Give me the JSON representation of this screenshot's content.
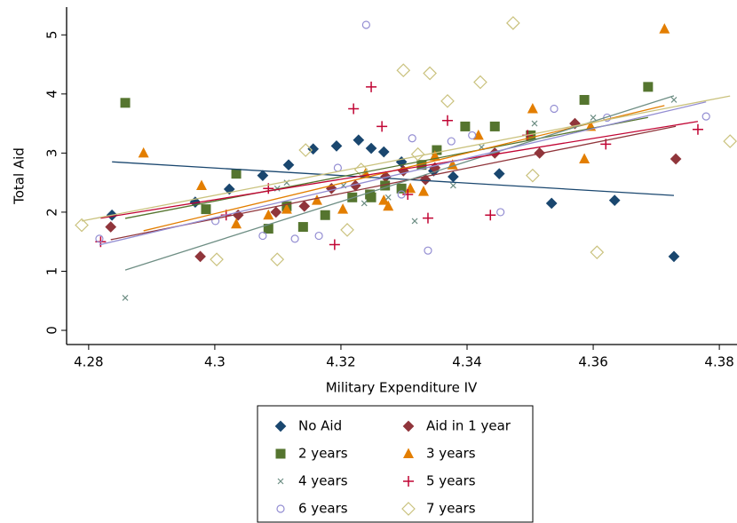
{
  "chart_data": {
    "type": "scatter",
    "x_label": "Military Expenditure IV",
    "y_label": "Total Aid",
    "xlim": [
      4.2765,
      4.3828
    ],
    "ylim": [
      -0.24,
      5.47
    ],
    "xticks": [
      4.28,
      {
        "value": 4.3,
        "label": "4.3"
      },
      4.32,
      4.34,
      4.36,
      4.38
    ],
    "yticks": [
      0,
      1,
      2,
      3,
      4,
      5
    ],
    "fit_lines": true,
    "series": [
      {
        "name": "No Aid",
        "color": "#1a476f",
        "marker": "diamond",
        "x": [
          4.2837,
          4.2969,
          4.3023,
          4.3076,
          4.3117,
          4.3156,
          4.3193,
          4.3228,
          4.3248,
          4.3268,
          4.3296,
          4.3378,
          4.3451,
          4.3534,
          4.3634,
          4.3728,
          4.3347
        ],
        "values": [
          1.95,
          2.17,
          2.39,
          2.62,
          2.8,
          3.07,
          3.12,
          3.22,
          3.08,
          3.02,
          2.85,
          2.6,
          2.65,
          2.15,
          2.2,
          1.25,
          2.7
        ]
      },
      {
        "name": "Aid in 1 year",
        "color": "#90353b",
        "marker": "diamond",
        "x": [
          4.2835,
          4.2977,
          4.3037,
          4.3097,
          4.3142,
          4.3185,
          4.3223,
          4.3271,
          4.3299,
          4.3334,
          4.3349,
          4.3444,
          4.3515,
          4.3571,
          4.3731
        ],
        "values": [
          1.75,
          1.25,
          1.95,
          2.0,
          2.1,
          2.4,
          2.45,
          2.6,
          2.7,
          2.55,
          2.75,
          3.0,
          3.0,
          3.5,
          2.9
        ]
      },
      {
        "name": "2 years",
        "color": "#55752f",
        "marker": "square",
        "x": [
          4.2858,
          4.2986,
          4.3034,
          4.3085,
          4.3114,
          4.314,
          4.3175,
          4.3218,
          4.3246,
          4.327,
          4.3296,
          4.3328,
          4.3352,
          4.3397,
          4.3444,
          4.3501,
          4.3586,
          4.3687,
          4.3248
        ],
        "values": [
          3.85,
          2.05,
          2.65,
          1.72,
          2.1,
          1.75,
          1.95,
          2.25,
          2.3,
          2.45,
          2.4,
          2.8,
          3.05,
          3.45,
          3.45,
          3.3,
          3.9,
          4.12,
          2.25
        ]
      },
      {
        "name": "3 years",
        "color": "#e37e00",
        "marker": "triangle",
        "x": [
          4.2887,
          4.2979,
          4.3034,
          4.3085,
          4.3114,
          4.3162,
          4.3203,
          4.3239,
          4.3268,
          4.3275,
          4.331,
          4.3331,
          4.3349,
          4.3377,
          4.3418,
          4.3504,
          4.3586,
          4.3713,
          4.3596
        ],
        "values": [
          3.0,
          2.45,
          1.8,
          1.95,
          2.05,
          2.2,
          2.05,
          2.65,
          2.2,
          2.1,
          2.4,
          2.35,
          2.95,
          2.8,
          3.3,
          3.75,
          2.9,
          5.1,
          3.45
        ]
      },
      {
        "name": "4 years",
        "color": "#6e8e84",
        "marker": "x",
        "x": [
          4.2858,
          4.3099,
          4.3114,
          4.3204,
          4.3237,
          4.3275,
          4.3317,
          4.3378,
          4.3507,
          4.36,
          4.3728,
          4.3423
        ],
        "values": [
          0.55,
          2.4,
          2.5,
          2.45,
          2.15,
          2.25,
          1.85,
          2.45,
          3.5,
          3.6,
          3.9,
          3.1
        ]
      },
      {
        "name": "5 years",
        "color": "#c10534",
        "marker": "plus",
        "x": [
          4.2819,
          4.3018,
          4.3085,
          4.319,
          4.322,
          4.3248,
          4.3265,
          4.3306,
          4.3338,
          4.3369,
          4.3437,
          4.3496,
          4.362,
          4.3766
        ],
        "values": [
          1.5,
          1.95,
          2.4,
          1.45,
          3.75,
          4.12,
          3.45,
          2.3,
          1.9,
          3.55,
          1.95,
          3.3,
          3.15,
          3.4
        ]
      },
      {
        "name": "6 years",
        "color": "#938dd2",
        "marker": "circle-hollow",
        "x": [
          4.2817,
          4.3001,
          4.3076,
          4.3127,
          4.3165,
          4.3195,
          4.324,
          4.3296,
          4.3313,
          4.3338,
          4.3375,
          4.3408,
          4.3453,
          4.3538,
          4.3622,
          4.3779
        ],
        "values": [
          1.55,
          1.85,
          1.6,
          1.55,
          1.6,
          2.75,
          5.17,
          2.3,
          3.25,
          1.35,
          3.2,
          3.3,
          2.0,
          3.75,
          3.6,
          3.62
        ]
      },
      {
        "name": "7 years",
        "color": "#cac27e",
        "marker": "diamond-hollow",
        "x": [
          4.2789,
          4.3003,
          4.3099,
          4.3144,
          4.321,
          4.3232,
          4.3299,
          4.3322,
          4.3341,
          4.3369,
          4.3421,
          4.3473,
          4.3504,
          4.3606,
          4.3817
        ],
        "values": [
          1.78,
          1.2,
          1.2,
          3.05,
          1.7,
          2.72,
          4.4,
          2.98,
          4.35,
          3.88,
          4.2,
          5.2,
          2.62,
          1.32,
          3.2
        ]
      }
    ]
  }
}
